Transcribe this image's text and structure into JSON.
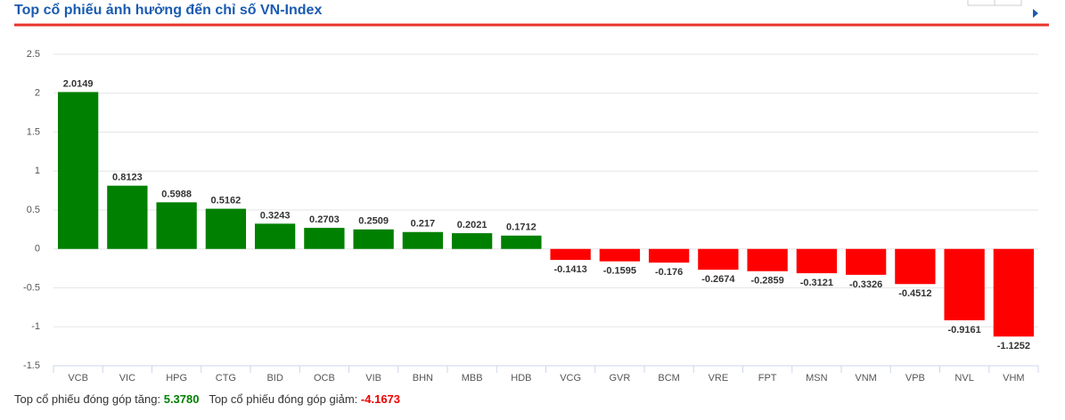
{
  "chart_data": {
    "type": "bar",
    "title": "Top cổ phiếu ảnh hưởng đến chỉ số VN-Index",
    "categories": [
      "VCB",
      "VIC",
      "HPG",
      "CTG",
      "BID",
      "OCB",
      "VIB",
      "BHN",
      "MBB",
      "HDB",
      "VCG",
      "GVR",
      "BCM",
      "VRE",
      "FPT",
      "MSN",
      "VNM",
      "VPB",
      "NVL",
      "VHM"
    ],
    "values": [
      2.0149,
      0.8123,
      0.5988,
      0.5162,
      0.3243,
      0.2703,
      0.2509,
      0.217,
      0.2021,
      0.1712,
      -0.1413,
      -0.1595,
      -0.176,
      -0.2674,
      -0.2859,
      -0.3121,
      -0.3326,
      -0.4512,
      -0.9161,
      -1.1252
    ],
    "positive_color": "#008000",
    "negative_color": "#ff0000",
    "ylim": [
      -1.5,
      2.5
    ],
    "yticks": [
      -1.5,
      -1,
      -0.5,
      0,
      0.5,
      1,
      1.5,
      2,
      2.5
    ],
    "grid": true
  },
  "footer": {
    "up_label": "Top cổ phiếu đóng góp tăng:",
    "up_value": "5.3780",
    "down_label": "Top cổ phiếu đóng góp giảm:",
    "down_value": "-4.1673"
  }
}
